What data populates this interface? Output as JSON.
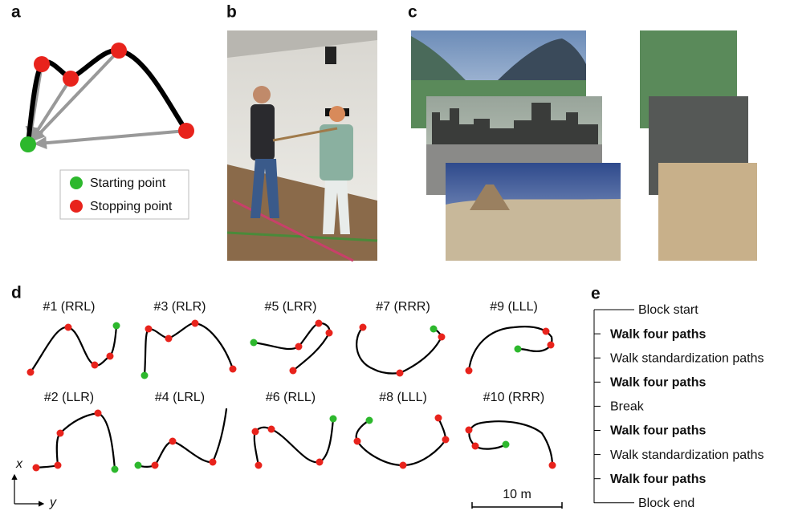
{
  "panel_a": {
    "label": "a",
    "legend": [
      "Starting point",
      "Stopping point"
    ]
  },
  "panel_b": {
    "label": "b"
  },
  "panel_c": {
    "label": "c"
  },
  "panel_d": {
    "label": "d",
    "paths": [
      "#1 (RRL)",
      "#3 (RLR)",
      "#5 (LRR)",
      "#7 (RRR)",
      "#9 (LLL)",
      "#2 (LLR)",
      "#4 (LRL)",
      "#6 (RLL)",
      "#8 (LLL)",
      "#10 (RRR)"
    ],
    "axis_x": "x",
    "axis_y": "y",
    "scale": "10 m"
  },
  "panel_e": {
    "label": "e",
    "items": [
      "Block start",
      "Walk four paths",
      "Walk standardization paths",
      "Walk four paths",
      "Break",
      "Walk four paths",
      "Walk standardization paths",
      "Walk four paths",
      "Block end"
    ]
  }
}
